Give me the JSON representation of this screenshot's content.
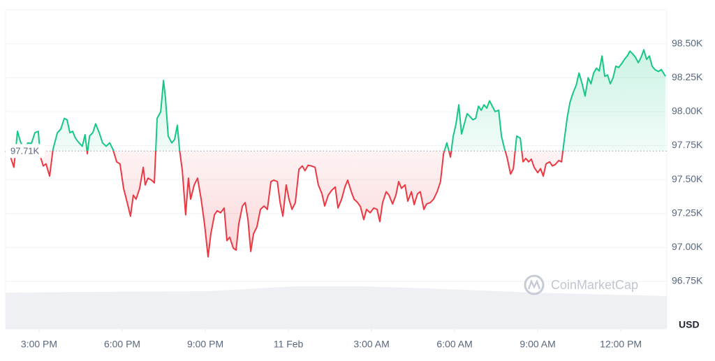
{
  "chart_data": {
    "type": "line",
    "unit_label": "USD",
    "watermark": "CoinMarketCap",
    "up_color": "#16c784",
    "down_color": "#ea3943",
    "baseline": {
      "value": 97710,
      "label": "97.71K"
    },
    "xlim": [
      13.79,
      37.66
    ],
    "ylim": [
      96400,
      98750
    ],
    "xticks": [
      {
        "value": 15,
        "label": "3:00 PM"
      },
      {
        "value": 18,
        "label": "6:00 PM"
      },
      {
        "value": 21,
        "label": "9:00 PM"
      },
      {
        "value": 24,
        "label": "11 Feb"
      },
      {
        "value": 27,
        "label": "3:00 AM"
      },
      {
        "value": 30,
        "label": "6:00 AM"
      },
      {
        "value": 33,
        "label": "9:00 AM"
      },
      {
        "value": 36,
        "label": "12:00 PM"
      }
    ],
    "yticks": [
      {
        "value": 96750,
        "label": "96.75K"
      },
      {
        "value": 97000,
        "label": "97.00K"
      },
      {
        "value": 97250,
        "label": "97.25K"
      },
      {
        "value": 97500,
        "label": "97.50K"
      },
      {
        "value": 97750,
        "label": "97.75K"
      },
      {
        "value": 98000,
        "label": "98.00K"
      },
      {
        "value": 98250,
        "label": "98.25K"
      },
      {
        "value": 98500,
        "label": "98.50K"
      }
    ],
    "grid": true,
    "x": [
      13.79,
      13.97,
      14.09,
      14.22,
      14.34,
      14.47,
      14.6,
      14.72,
      14.85,
      14.97,
      15.05,
      15.15,
      15.25,
      15.38,
      15.5,
      15.66,
      15.78,
      15.91,
      16.01,
      16.11,
      16.21,
      16.31,
      16.44,
      16.56,
      16.66,
      16.74,
      16.82,
      16.94,
      17.04,
      17.17,
      17.29,
      17.42,
      17.55,
      17.67,
      17.8,
      17.92,
      18.05,
      18.18,
      18.3,
      18.4,
      18.5,
      18.63,
      18.76,
      18.83,
      18.93,
      19.06,
      19.16,
      19.26,
      19.39,
      19.49,
      19.56,
      19.66,
      19.79,
      19.89,
      19.99,
      20.07,
      20.17,
      20.29,
      20.39,
      20.47,
      20.6,
      20.72,
      20.85,
      20.97,
      21.1,
      21.2,
      21.33,
      21.43,
      21.55,
      21.68,
      21.78,
      21.88,
      22.01,
      22.11,
      22.21,
      22.34,
      22.44,
      22.54,
      22.64,
      22.74,
      22.86,
      22.99,
      23.12,
      23.24,
      23.37,
      23.47,
      23.6,
      23.7,
      23.8,
      23.92,
      24.02,
      24.13,
      24.25,
      24.38,
      24.5,
      24.6,
      24.71,
      24.83,
      24.96,
      25.08,
      25.21,
      25.31,
      25.44,
      25.56,
      25.69,
      25.79,
      25.92,
      26.04,
      26.14,
      26.27,
      26.37,
      26.5,
      26.6,
      26.72,
      26.82,
      26.95,
      27.08,
      27.2,
      27.3,
      27.4,
      27.53,
      27.63,
      27.76,
      27.88,
      27.98,
      28.08,
      28.21,
      28.31,
      28.44,
      28.54,
      28.66,
      28.76,
      28.89,
      28.99,
      29.12,
      29.24,
      29.37,
      29.49,
      29.6,
      29.72,
      29.85,
      29.95,
      30.05,
      30.15,
      30.25,
      30.35,
      30.45,
      30.55,
      30.66,
      30.76,
      30.86,
      30.96,
      31.06,
      31.16,
      31.26,
      31.36,
      31.46,
      31.59,
      31.69,
      31.79,
      31.89,
      32.02,
      32.12,
      32.24,
      32.37,
      32.47,
      32.57,
      32.67,
      32.77,
      32.87,
      33.0,
      33.1,
      33.2,
      33.3,
      33.43,
      33.53,
      33.63,
      33.76,
      33.86,
      33.96,
      34.06,
      34.16,
      34.26,
      34.39,
      34.49,
      34.59,
      34.71,
      34.82,
      34.92,
      35.02,
      35.12,
      35.22,
      35.32,
      35.42,
      35.52,
      35.62,
      35.72,
      35.82,
      35.92,
      36.02,
      36.13,
      36.23,
      36.33,
      36.43,
      36.53,
      36.63,
      36.73,
      36.83,
      36.93,
      37.03,
      37.13,
      37.23,
      37.36,
      37.46,
      37.61
    ],
    "values": [
      97710,
      97665,
      97590,
      97855,
      97770,
      97735,
      97770,
      97765,
      97845,
      97855,
      97665,
      97600,
      97615,
      97525,
      97720,
      97845,
      97870,
      97950,
      97940,
      97845,
      97855,
      97805,
      97770,
      97745,
      97830,
      97690,
      97820,
      97845,
      97910,
      97845,
      97770,
      97745,
      97770,
      97720,
      97630,
      97615,
      97435,
      97330,
      97230,
      97385,
      97355,
      97435,
      97590,
      97460,
      97510,
      97495,
      97475,
      97950,
      98000,
      98230,
      98105,
      97820,
      97770,
      97795,
      97900,
      97720,
      97565,
      97240,
      97510,
      97355,
      97460,
      97510,
      97355,
      97175,
      96930,
      97100,
      97240,
      97270,
      97255,
      97290,
      97050,
      97075,
      96995,
      96980,
      97175,
      97305,
      97330,
      97205,
      96970,
      97100,
      97150,
      97280,
      97305,
      97280,
      97485,
      97495,
      97485,
      97330,
      97230,
      97460,
      97355,
      97280,
      97330,
      97575,
      97600,
      97565,
      97605,
      97600,
      97590,
      97460,
      97395,
      97305,
      97385,
      97420,
      97445,
      97290,
      97355,
      97445,
      97495,
      97410,
      97355,
      97330,
      97300,
      97205,
      97280,
      97255,
      97290,
      97280,
      97190,
      97330,
      97410,
      97385,
      97320,
      97385,
      97485,
      97435,
      97460,
      97340,
      97410,
      97315,
      97395,
      97410,
      97280,
      97320,
      97330,
      97355,
      97410,
      97485,
      97690,
      97770,
      97665,
      97820,
      97910,
      98050,
      97835,
      97910,
      97985,
      97965,
      97940,
      97950,
      98040,
      98010,
      98050,
      98025,
      98080,
      98040,
      98000,
      98010,
      97820,
      97735,
      97665,
      97540,
      97580,
      97820,
      97805,
      97630,
      97655,
      97630,
      97650,
      97590,
      97550,
      97580,
      97525,
      97615,
      97630,
      97600,
      97610,
      97640,
      97630,
      97795,
      97950,
      98065,
      98130,
      98195,
      98285,
      98215,
      98115,
      98250,
      98205,
      98285,
      98320,
      98300,
      98410,
      98260,
      98270,
      98205,
      98250,
      98335,
      98325,
      98350,
      98385,
      98410,
      98445,
      98425,
      98400,
      98360,
      98400,
      98455,
      98385,
      98410,
      98335,
      98310,
      98295,
      98310,
      98260
    ]
  }
}
